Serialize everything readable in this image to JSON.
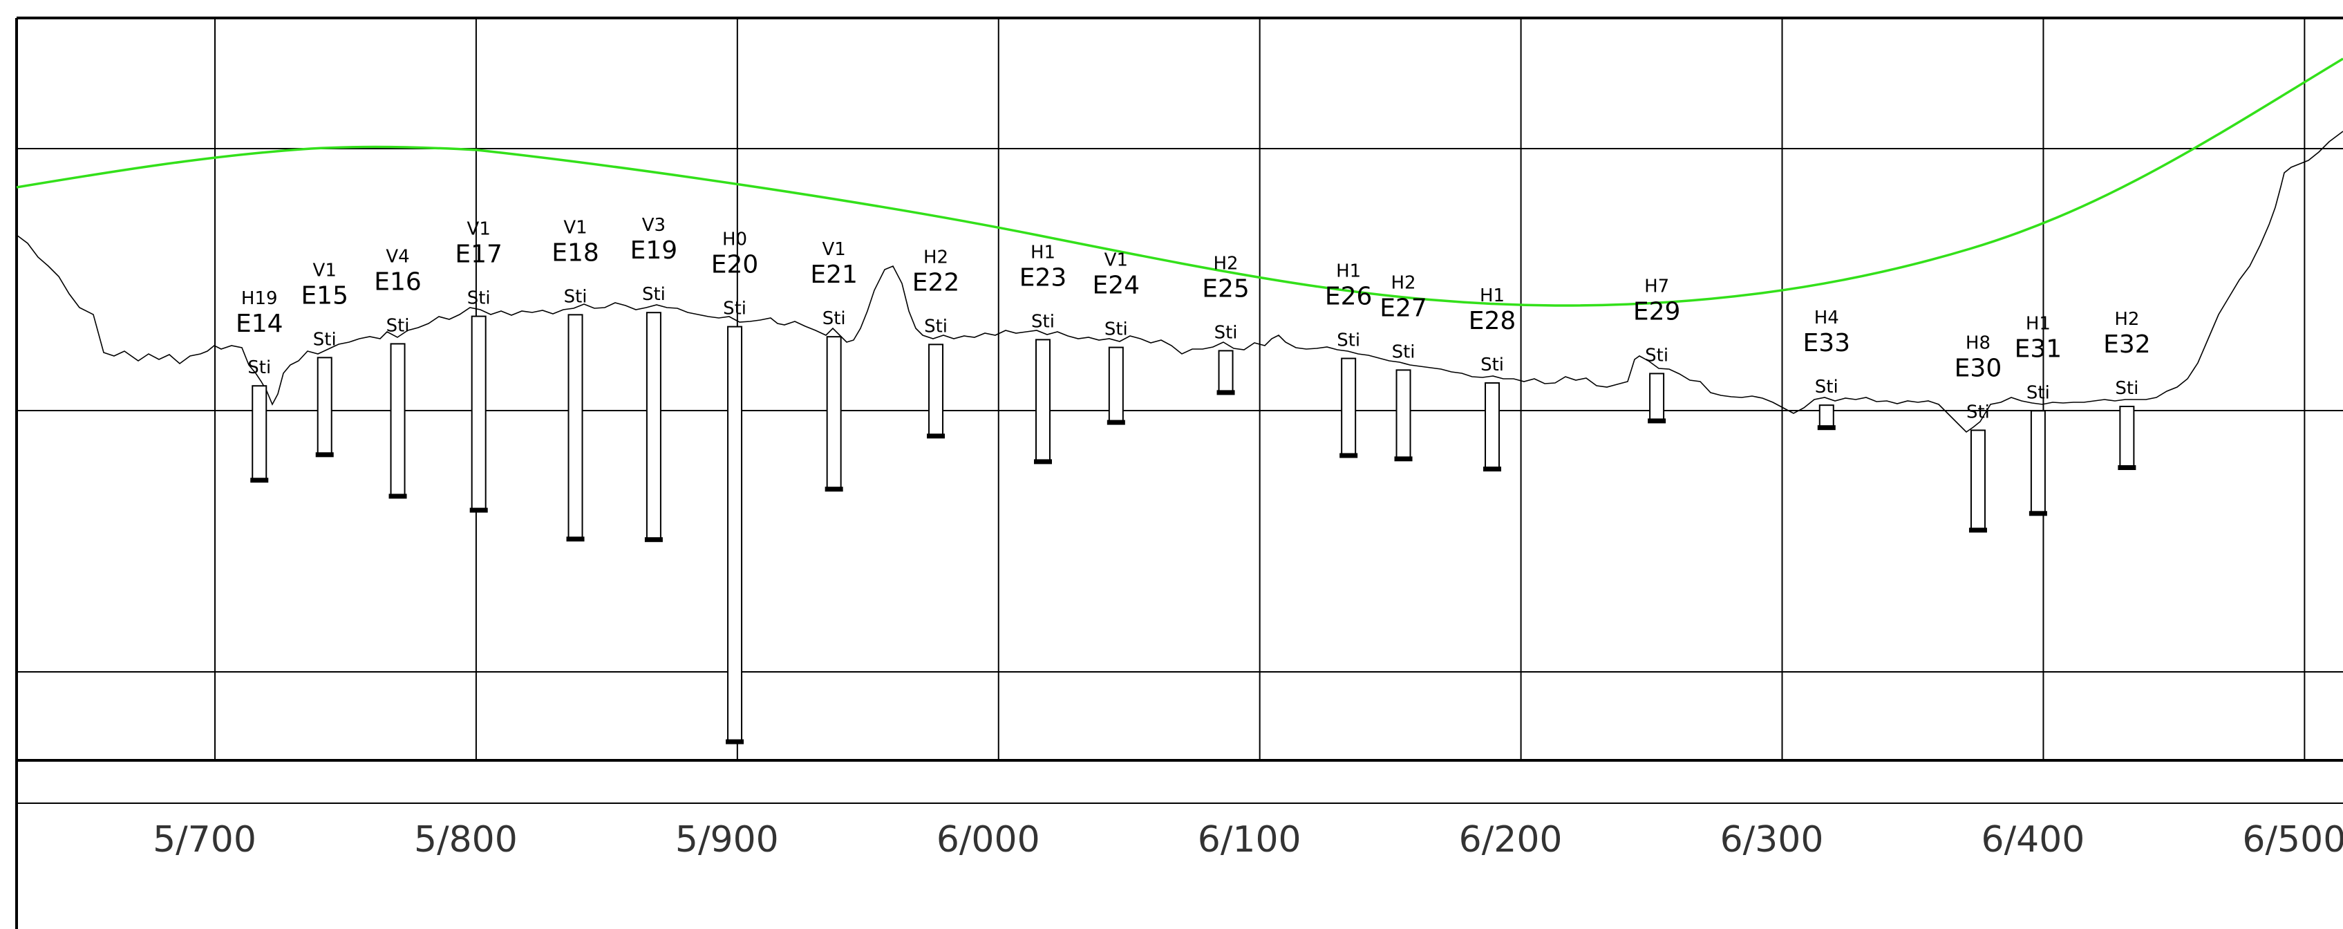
{
  "chainage_axis": {
    "ticks": [
      {
        "value": 5700,
        "label": "5/700"
      },
      {
        "value": 5800,
        "label": "5/800"
      },
      {
        "value": 5900,
        "label": "5/900"
      },
      {
        "value": 6000,
        "label": "6/000"
      },
      {
        "value": 6100,
        "label": "6/100"
      },
      {
        "value": 6200,
        "label": "6/200"
      },
      {
        "value": 6300,
        "label": "6/300"
      },
      {
        "value": 6400,
        "label": "6/400"
      },
      {
        "value": 6500,
        "label": "6/500"
      }
    ]
  },
  "colors": {
    "design_line": "#33e01a",
    "terrain_line": "#000000",
    "grid": "#000000"
  },
  "boreholes": [
    {
      "id": "E14",
      "class": "H19",
      "layer": "Sti",
      "chainage": 5717,
      "depth": 34
    },
    {
      "id": "E15",
      "class": "V1",
      "layer": "Sti",
      "chainage": 5742,
      "depth": 35
    },
    {
      "id": "E16",
      "class": "V4",
      "layer": "Sti",
      "chainage": 5770,
      "depth": 55
    },
    {
      "id": "E17",
      "class": "V1",
      "layer": "Sti",
      "chainage": 5801,
      "depth": 70
    },
    {
      "id": "E18",
      "class": "V1",
      "layer": "Sti",
      "chainage": 5838,
      "depth": 81
    },
    {
      "id": "E19",
      "class": "V3",
      "layer": "Sti",
      "chainage": 5868,
      "depth": 82
    },
    {
      "id": "E20",
      "class": "H0",
      "layer": "Sti",
      "chainage": 5899,
      "depth": 150
    },
    {
      "id": "E21",
      "class": "V1",
      "layer": "Sti",
      "chainage": 5937,
      "depth": 55
    },
    {
      "id": "E22",
      "class": "H2",
      "layer": "Sti",
      "chainage": 5976,
      "depth": 33
    },
    {
      "id": "E23",
      "class": "H1",
      "layer": "Sti",
      "chainage": 6017,
      "depth": 44
    },
    {
      "id": "E24",
      "class": "V1",
      "layer": "Sti",
      "chainage": 6045,
      "depth": 27
    },
    {
      "id": "E25",
      "class": "H2",
      "layer": "Sti",
      "chainage": 6087,
      "depth": 15
    },
    {
      "id": "E26",
      "class": "H1",
      "layer": "Sti",
      "chainage": 6134,
      "depth": 35
    },
    {
      "id": "E27",
      "class": "H2",
      "layer": "Sti",
      "chainage": 6155,
      "depth": 32
    },
    {
      "id": "E28",
      "class": "H1",
      "layer": "Sti",
      "chainage": 6189,
      "depth": 31
    },
    {
      "id": "E29",
      "class": "H7",
      "layer": "Sti",
      "chainage": 6252,
      "depth": 17
    },
    {
      "id": "E33",
      "class": "H4",
      "layer": "Sti",
      "chainage": 6317,
      "depth": 8
    },
    {
      "id": "E30",
      "class": "H8",
      "layer": "Sti",
      "chainage": 6375,
      "depth": 36
    },
    {
      "id": "E31",
      "class": "H1",
      "layer": "Sti",
      "chainage": 6398,
      "depth": 37
    },
    {
      "id": "E32",
      "class": "H2",
      "layer": "Sti",
      "chainage": 6432,
      "depth": 22
    }
  ]
}
